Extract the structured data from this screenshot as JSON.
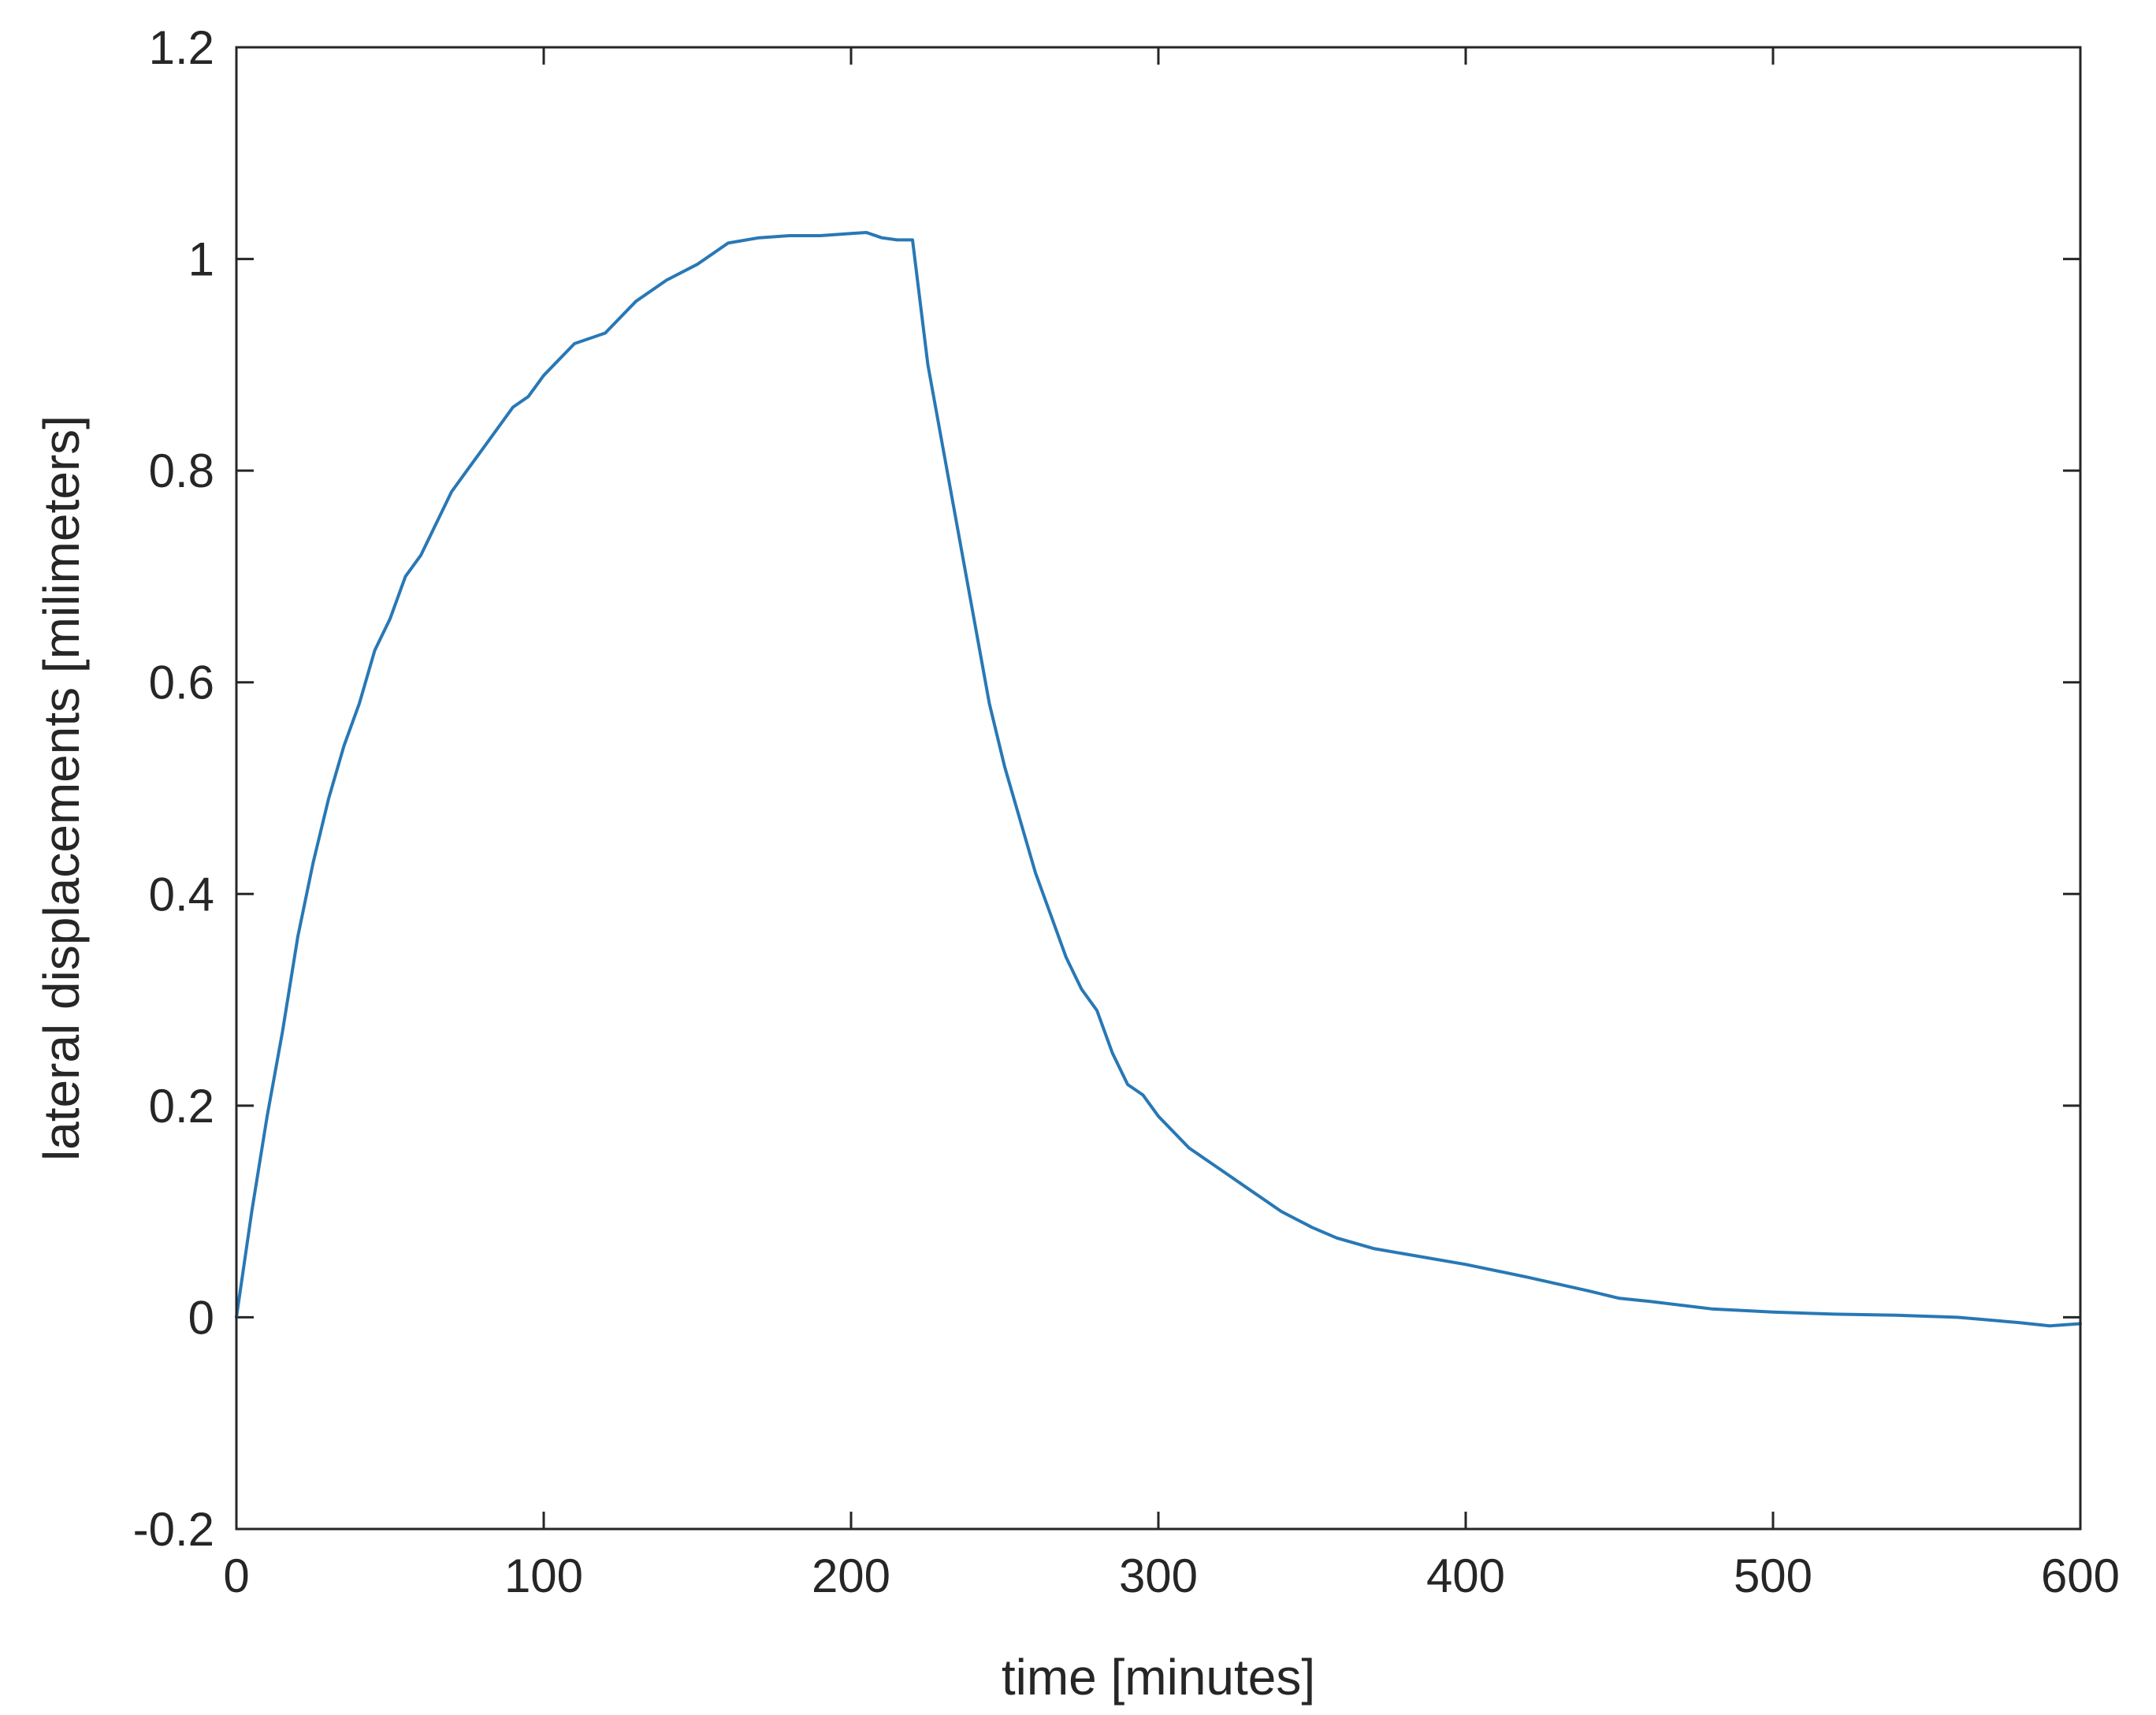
{
  "chart_data": {
    "type": "line",
    "title": "",
    "xlabel": "time [minutes]",
    "ylabel": "lateral displacements [milimeters]",
    "xlim": [
      0,
      600
    ],
    "ylim": [
      -0.2,
      1.2
    ],
    "xticks": [
      0,
      100,
      200,
      300,
      400,
      500,
      600
    ],
    "yticks": [
      -0.2,
      0,
      0.2,
      0.4,
      0.6,
      0.8,
      1,
      1.2
    ],
    "xtick_labels": [
      "0",
      "100",
      "200",
      "300",
      "400",
      "500",
      "600"
    ],
    "ytick_labels": [
      "-0.2",
      "0",
      "0.2",
      "0.4",
      "0.6",
      "0.8",
      "1",
      "1.2"
    ],
    "grid": false,
    "legend": "none",
    "series": [
      {
        "color": "#2878b5",
        "x": [
          0,
          5,
          10,
          15,
          20,
          25,
          30,
          35,
          40,
          45,
          50,
          55,
          60,
          65,
          70,
          75,
          80,
          85,
          90,
          95,
          100,
          110,
          120,
          130,
          140,
          150,
          160,
          170,
          180,
          190,
          200,
          205,
          210,
          215,
          220,
          225,
          230,
          235,
          240,
          245,
          250,
          255,
          260,
          265,
          270,
          275,
          280,
          285,
          290,
          295,
          300,
          310,
          320,
          330,
          340,
          350,
          358,
          370,
          380,
          400,
          420,
          440,
          450,
          460,
          480,
          500,
          520,
          540,
          560,
          580,
          590,
          600
        ],
        "y": [
          0,
          0.1,
          0.19,
          0.27,
          0.36,
          0.43,
          0.49,
          0.54,
          0.58,
          0.63,
          0.66,
          0.7,
          0.72,
          0.75,
          0.78,
          0.8,
          0.82,
          0.84,
          0.86,
          0.87,
          0.89,
          0.92,
          0.93,
          0.96,
          0.98,
          0.995,
          1.015,
          1.02,
          1.022,
          1.022,
          1.024,
          1.025,
          1.02,
          1.018,
          1.018,
          0.9,
          0.82,
          0.74,
          0.66,
          0.58,
          0.52,
          0.47,
          0.42,
          0.38,
          0.34,
          0.31,
          0.29,
          0.25,
          0.22,
          0.21,
          0.19,
          0.16,
          0.14,
          0.12,
          0.1,
          0.085,
          0.075,
          0.065,
          0.06,
          0.05,
          0.038,
          0.025,
          0.018,
          0.015,
          0.008,
          0.005,
          0.003,
          0.002,
          0.0,
          -0.005,
          -0.008,
          -0.006
        ]
      }
    ]
  }
}
